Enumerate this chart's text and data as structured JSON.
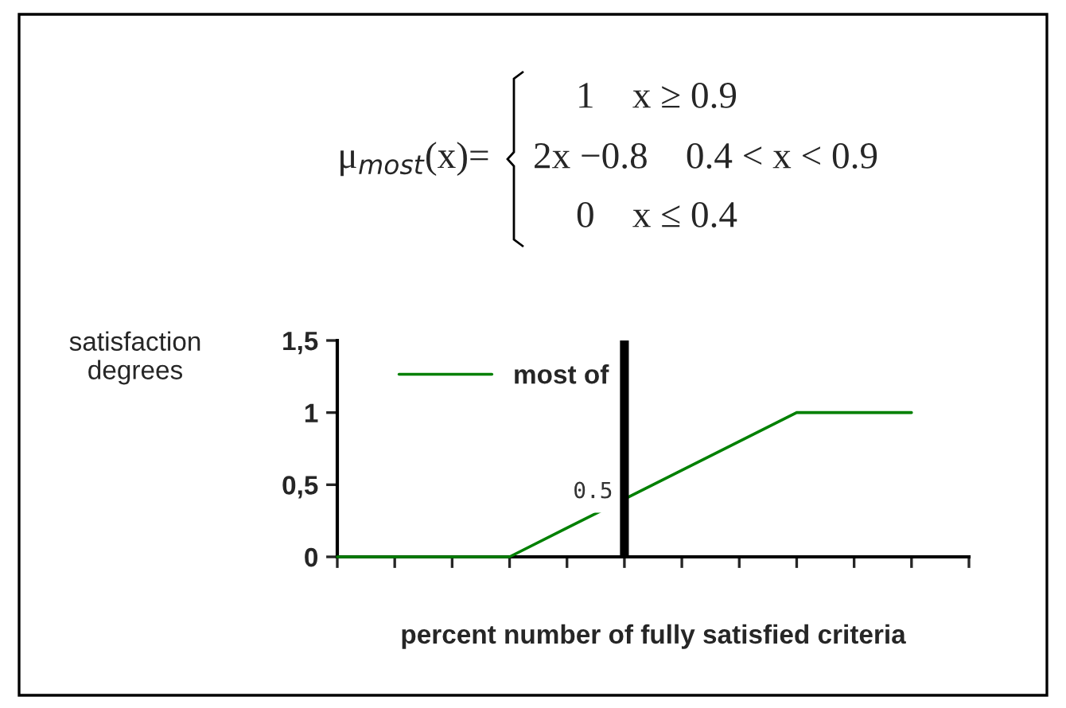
{
  "chart_data": {
    "type": "line",
    "categories": [
      null,
      null,
      null,
      null,
      null,
      null,
      null,
      null,
      null,
      null,
      null
    ],
    "series": [
      {
        "name": "most of",
        "color": "#008000",
        "values": [
          0,
          0,
          0,
          0,
          0.2,
          0.4,
          0.6,
          0.8,
          1,
          1,
          1
        ]
      }
    ],
    "ylim": [
      0,
      1.5
    ],
    "yticks": [
      0,
      {
        "value": 0.5,
        "label": "0,5"
      },
      1,
      {
        "value": 1.5,
        "label": "1,5"
      }
    ],
    "tick_labels": "y",
    "xlabel": "percent number of fully satisfied criteria",
    "ylabel": "satisfaction\ndegrees",
    "legend": "top left",
    "grid": false,
    "marker": "none",
    "line_style": "solid",
    "annotations": [
      "μ$_{most}$(x)=",
      "1    x ≥ 0.9",
      "2x −0.8    0.4 < x < 0.9",
      "0    x ≤ 0.4",
      "0.5"
    ]
  }
}
